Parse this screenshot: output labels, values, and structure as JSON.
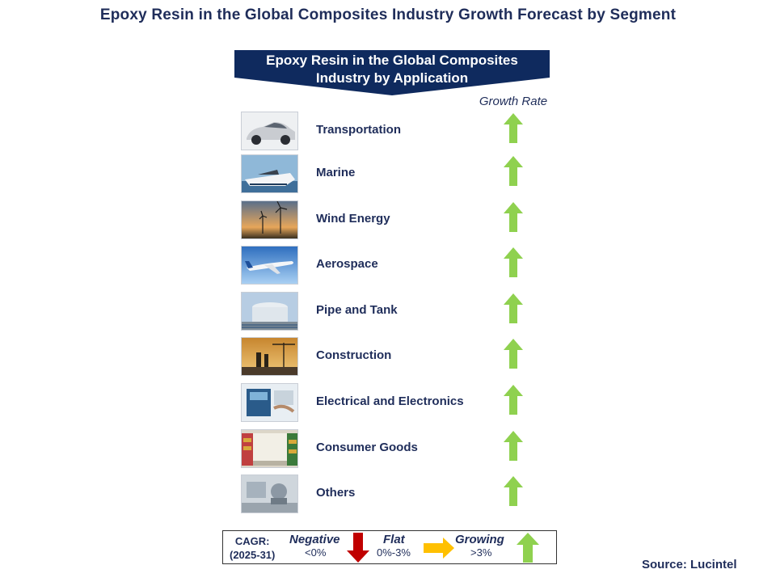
{
  "title": "Epoxy Resin in the Global Composites Industry Growth Forecast by Segment",
  "banner": {
    "line1": "Epoxy Resin in the Global Composites",
    "line2": "Industry by Application",
    "color": "#0f2a5e"
  },
  "growth_header": "Growth Rate",
  "segments": [
    {
      "label": "Transportation",
      "growth": "Growing",
      "image": "car"
    },
    {
      "label": "Marine",
      "growth": "Growing",
      "image": "boat"
    },
    {
      "label": "Wind Energy",
      "growth": "Growing",
      "image": "wind-turbines"
    },
    {
      "label": "Aerospace",
      "growth": "Growing",
      "image": "airplane"
    },
    {
      "label": "Pipe and Tank",
      "growth": "Growing",
      "image": "tank"
    },
    {
      "label": "Construction",
      "growth": "Growing",
      "image": "construction"
    },
    {
      "label": "Electrical and Electronics",
      "growth": "Growing",
      "image": "electronics"
    },
    {
      "label": "Consumer Goods",
      "growth": "Growing",
      "image": "store-shelves"
    },
    {
      "label": "Others",
      "growth": "Growing",
      "image": "lab"
    }
  ],
  "legend": {
    "cagr_line1": "CAGR:",
    "cagr_line2": "(2025-31)",
    "negative": {
      "title": "Negative",
      "range": "<0%",
      "color": "#c00000"
    },
    "flat": {
      "title": "Flat",
      "range": "0%-3%",
      "color": "#ffc000"
    },
    "growing": {
      "title": "Growing",
      "range": ">3%",
      "color": "#8fd14f"
    }
  },
  "source": "Source: Lucintel"
}
